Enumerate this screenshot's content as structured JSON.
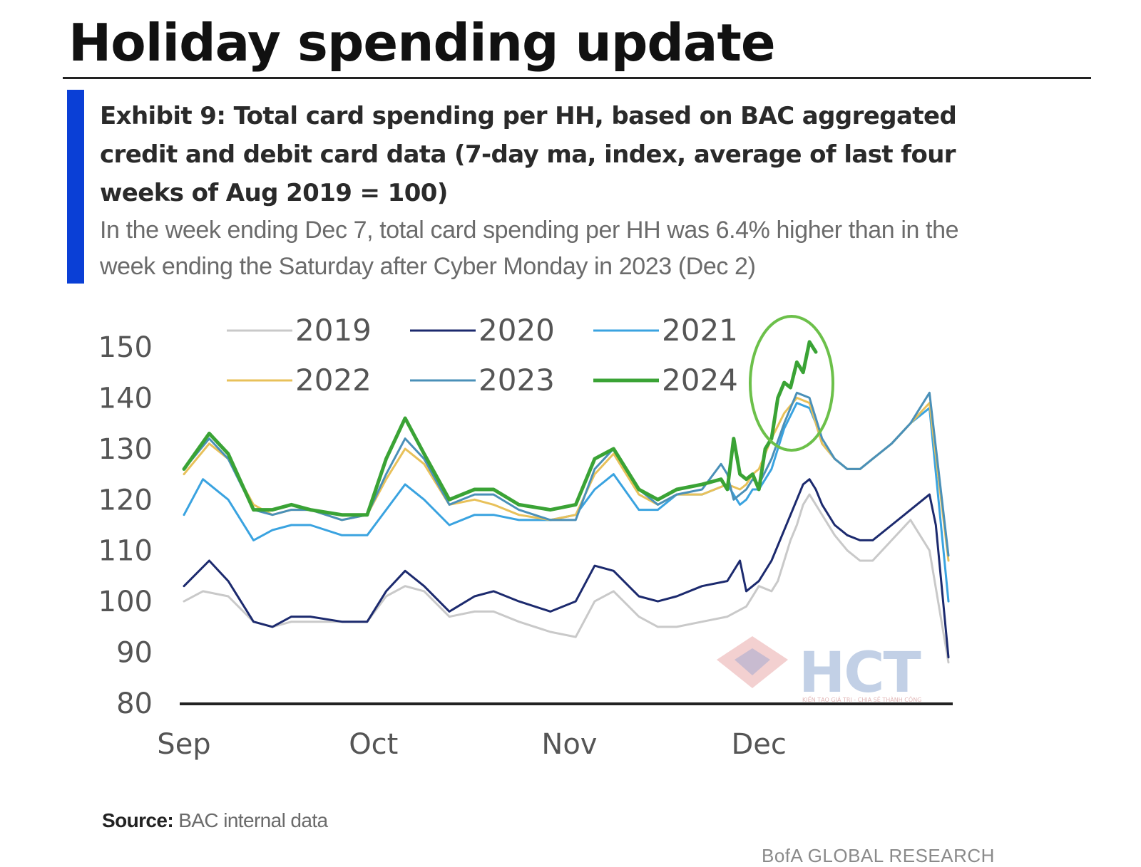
{
  "header": {
    "title": "Holiday spending update"
  },
  "exhibit": {
    "title": "Exhibit 9: Total card spending per HH, based on BAC aggregated credit and debit card data (7-day ma, index, average of last four weeks of Aug 2019 = 100)",
    "subtitle": "In the week ending Dec 7, total card spending per HH was 6.4% higher than in the week ending the Saturday after Cyber Monday in 2023 (Dec 2)"
  },
  "source": {
    "label": "Source:",
    "text": "BAC internal data"
  },
  "footer": {
    "brand": "BofA GLOBAL RESEARCH"
  },
  "watermark": {
    "text": "HCT",
    "tagline": "KIẾN TẠO GIÁ TRỊ - CHIA SẺ THÀNH CÔNG"
  },
  "colors": {
    "accent": "#0a3fd6",
    "highlight_circle": "#6cc04a"
  },
  "chart_data": {
    "type": "line",
    "title": "",
    "xlabel": "",
    "ylabel": "",
    "x_ticks": [
      "Sep",
      "Oct",
      "Nov",
      "Dec"
    ],
    "x_tick_days": [
      1,
      31,
      62,
      92
    ],
    "xlim": [
      1,
      122
    ],
    "ylim": [
      80,
      150
    ],
    "y_ticks": [
      80,
      90,
      100,
      110,
      120,
      130,
      140,
      150
    ],
    "legend": "top",
    "grid": false,
    "annotation": "circle highlighting 2024 peak in early Dec",
    "series": [
      {
        "name": "2019",
        "color": "#c9c9c9",
        "width": 3,
        "x": [
          1,
          4,
          8,
          12,
          15,
          18,
          21,
          26,
          30,
          33,
          36,
          39,
          43,
          47,
          50,
          54,
          59,
          63,
          66,
          69,
          73,
          76,
          79,
          83,
          87,
          90,
          91,
          92,
          94,
          95,
          96,
          97,
          98,
          99,
          100,
          101,
          102,
          104,
          106,
          108,
          110,
          113,
          116,
          119,
          122
        ],
        "values": [
          100,
          102,
          101,
          96,
          95,
          96,
          96,
          96,
          96,
          101,
          103,
          102,
          97,
          98,
          98,
          96,
          94,
          93,
          100,
          102,
          97,
          95,
          95,
          96,
          97,
          99,
          101,
          103,
          102,
          104,
          108,
          112,
          115,
          119,
          121,
          119,
          117,
          113,
          110,
          108,
          108,
          112,
          116,
          110,
          88
        ]
      },
      {
        "name": "2020",
        "color": "#1c2a6e",
        "width": 3,
        "x": [
          1,
          5,
          8,
          12,
          15,
          18,
          21,
          26,
          30,
          33,
          36,
          39,
          43,
          47,
          50,
          54,
          59,
          63,
          66,
          69,
          73,
          76,
          79,
          83,
          87,
          89,
          90,
          91,
          92,
          94,
          96,
          98,
          99,
          100,
          101,
          102,
          104,
          106,
          108,
          110,
          113,
          116,
          119,
          120,
          122
        ],
        "values": [
          103,
          108,
          104,
          96,
          95,
          97,
          97,
          96,
          96,
          102,
          106,
          103,
          98,
          101,
          102,
          100,
          98,
          100,
          107,
          106,
          101,
          100,
          101,
          103,
          104,
          108,
          102,
          103,
          104,
          108,
          114,
          120,
          123,
          124,
          122,
          119,
          115,
          113,
          112,
          112,
          115,
          118,
          121,
          115,
          89
        ]
      },
      {
        "name": "2021",
        "color": "#3aa3e0",
        "width": 3,
        "x": [
          1,
          4,
          8,
          12,
          15,
          18,
          21,
          26,
          30,
          33,
          36,
          39,
          43,
          47,
          50,
          54,
          59,
          63,
          66,
          69,
          73,
          76,
          79,
          83,
          87,
          89,
          90,
          91,
          92,
          94,
          96,
          98,
          100,
          101,
          102,
          104,
          106,
          108,
          110,
          113,
          116,
          119,
          122
        ],
        "values": [
          117,
          124,
          120,
          112,
          114,
          115,
          115,
          113,
          113,
          118,
          123,
          120,
          115,
          117,
          117,
          116,
          116,
          117,
          122,
          125,
          118,
          118,
          121,
          121,
          123,
          119,
          120,
          122,
          122,
          126,
          134,
          139,
          138,
          135,
          131,
          128,
          126,
          126,
          128,
          131,
          135,
          138,
          100
        ]
      },
      {
        "name": "2022",
        "color": "#e8c15a",
        "width": 3,
        "x": [
          1,
          5,
          8,
          12,
          15,
          18,
          21,
          26,
          30,
          33,
          36,
          39,
          43,
          47,
          50,
          54,
          59,
          63,
          66,
          69,
          73,
          76,
          79,
          83,
          87,
          89,
          90,
          91,
          92,
          94,
          96,
          98,
          100,
          101,
          102,
          104,
          106,
          108,
          110,
          113,
          116,
          119,
          122
        ],
        "values": [
          125,
          131,
          128,
          119,
          117,
          118,
          118,
          116,
          117,
          124,
          130,
          127,
          119,
          120,
          119,
          117,
          116,
          117,
          125,
          129,
          121,
          119,
          121,
          121,
          123,
          122,
          123,
          125,
          126,
          132,
          137,
          140,
          139,
          135,
          131,
          128,
          126,
          126,
          128,
          131,
          135,
          139,
          108
        ]
      },
      {
        "name": "2023",
        "color": "#4a90b8",
        "width": 3,
        "x": [
          1,
          5,
          8,
          12,
          15,
          18,
          21,
          26,
          30,
          33,
          36,
          39,
          43,
          47,
          50,
          54,
          59,
          63,
          66,
          69,
          73,
          76,
          79,
          83,
          86,
          87,
          88,
          89,
          90,
          91,
          92,
          94,
          96,
          98,
          100,
          101,
          102,
          104,
          106,
          108,
          110,
          113,
          116,
          119,
          122
        ],
        "values": [
          126,
          132,
          128,
          118,
          117,
          118,
          118,
          116,
          117,
          125,
          132,
          128,
          119,
          121,
          121,
          118,
          116,
          116,
          126,
          130,
          122,
          119,
          121,
          122,
          127,
          125,
          120,
          121,
          122,
          124,
          123,
          128,
          135,
          141,
          140,
          136,
          132,
          128,
          126,
          126,
          128,
          131,
          135,
          141,
          109
        ]
      },
      {
        "name": "2024",
        "color": "#3aa335",
        "width": 5,
        "x": [
          1,
          5,
          8,
          12,
          15,
          18,
          21,
          26,
          30,
          33,
          36,
          39,
          43,
          47,
          50,
          54,
          59,
          63,
          66,
          69,
          73,
          76,
          79,
          83,
          86,
          87,
          88,
          89,
          90,
          91,
          92,
          93,
          94,
          95,
          96,
          97,
          98,
          99,
          100,
          101
        ],
        "values": [
          126,
          133,
          129,
          118,
          118,
          119,
          118,
          117,
          117,
          128,
          136,
          129,
          120,
          122,
          122,
          119,
          118,
          119,
          128,
          130,
          122,
          120,
          122,
          123,
          124,
          122,
          132,
          125,
          124,
          125,
          122,
          130,
          132,
          140,
          143,
          142,
          147,
          145,
          151,
          149
        ]
      }
    ]
  }
}
